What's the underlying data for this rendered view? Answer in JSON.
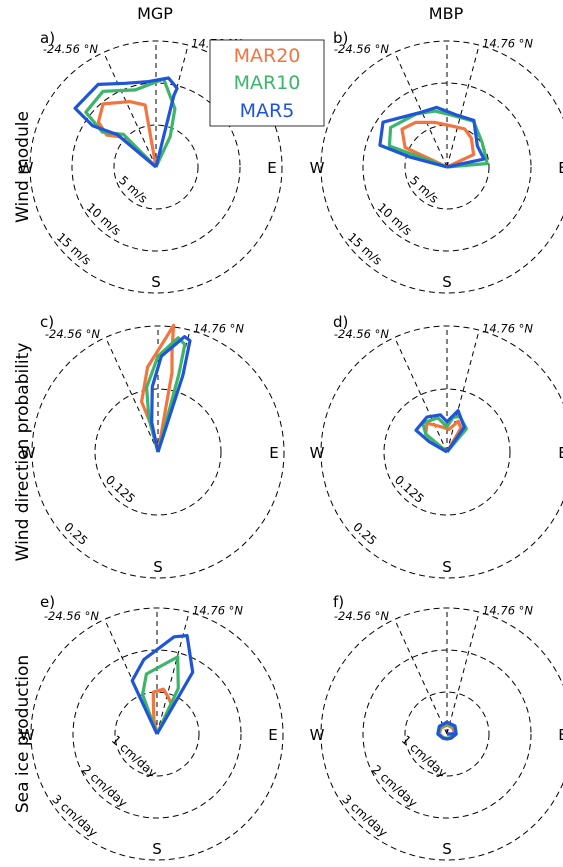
{
  "columns": [
    "MGP",
    "MBP"
  ],
  "row_labels": [
    "Wind module",
    "Wind direction probability",
    "Sea ice production"
  ],
  "directions": {
    "west": "W",
    "east": "E",
    "south": "S"
  },
  "latitude_labels": {
    "left": "-24.56 °N",
    "right": "14.76 °N"
  },
  "legend": [
    {
      "name": "MAR20",
      "color": "#f4743f"
    },
    {
      "name": "MAR10",
      "color": "#3cb46a"
    },
    {
      "name": "MAR5",
      "color": "#1f55d8"
    }
  ],
  "chart_data": [
    {
      "panel": "a)",
      "column": "MGP",
      "row": "Wind module",
      "type": "polar-line",
      "angle_unit": "degrees clockwise from north",
      "r_max": 15,
      "ring_values": [
        5,
        10,
        15
      ],
      "ring_labels": [
        "5 m/s",
        "10 m/s",
        "15 m/s"
      ],
      "show_ring_labels": true,
      "latitudes": [
        -24.56,
        14.76
      ],
      "series": [
        {
          "name": "MAR20",
          "points": [
            [
              0,
              0
            ],
            [
              -10,
              7.5
            ],
            [
              -22,
              8.4
            ],
            [
              -40,
              9.8
            ],
            [
              -52,
              8.7
            ],
            [
              -57,
              7.0
            ],
            [
              -50,
              5.6
            ],
            [
              0,
              0
            ]
          ]
        },
        {
          "name": "MAR10",
          "points": [
            [
              0,
              0
            ],
            [
              25,
              4.0
            ],
            [
              18,
              7.3
            ],
            [
              5,
              10.5
            ],
            [
              -15,
              9.5
            ],
            [
              -35,
              11.0
            ],
            [
              -52,
              10.6
            ],
            [
              -57,
              7.6
            ],
            [
              -45,
              5.5
            ],
            [
              0,
              0
            ]
          ]
        },
        {
          "name": "MAR5",
          "points": [
            [
              0,
              0
            ],
            [
              14,
              8.8
            ],
            [
              15,
              9.7
            ],
            [
              8,
              10.7
            ],
            [
              -5,
              10.2
            ],
            [
              -20,
              10.6
            ],
            [
              -35,
              12.0
            ],
            [
              -54,
              11.9
            ],
            [
              -57,
              9.0
            ],
            [
              -50,
              6.0
            ],
            [
              0,
              0
            ]
          ]
        }
      ]
    },
    {
      "panel": "b)",
      "column": "MBP",
      "row": "Wind module",
      "type": "polar-line",
      "angle_unit": "degrees clockwise from north",
      "r_max": 15,
      "ring_values": [
        5,
        10,
        15
      ],
      "ring_labels": [
        "5 m/s",
        "10 m/s",
        "15 m/s"
      ],
      "show_ring_labels": true,
      "latitudes": [
        -24.56,
        14.76
      ],
      "series": [
        {
          "name": "MAR20",
          "points": [
            [
              0,
              0
            ],
            [
              65,
              3.5
            ],
            [
              40,
              4.5
            ],
            [
              25,
              5.0
            ],
            [
              0,
              5.0
            ],
            [
              -15,
              5.5
            ],
            [
              -35,
              6.5
            ],
            [
              -50,
              7.0
            ],
            [
              -65,
              5.5
            ],
            [
              0,
              0
            ]
          ]
        },
        {
          "name": "MAR10",
          "points": [
            [
              0,
              0
            ],
            [
              85,
              4.8
            ],
            [
              55,
              5.1
            ],
            [
              30,
              6.3
            ],
            [
              5,
              6.2
            ],
            [
              -12,
              6.8
            ],
            [
              -30,
              7.3
            ],
            [
              -55,
              8.2
            ],
            [
              -70,
              7.3
            ],
            [
              0,
              0
            ]
          ]
        },
        {
          "name": "MAR5",
          "points": [
            [
              0,
              0
            ],
            [
              78,
              4.5
            ],
            [
              55,
              4.4
            ],
            [
              30,
              6.4
            ],
            [
              10,
              6.3
            ],
            [
              -10,
              7.2
            ],
            [
              -25,
              7.2
            ],
            [
              -55,
              9.3
            ],
            [
              -72,
              8.4
            ],
            [
              -75,
              4.5
            ],
            [
              0,
              0
            ]
          ]
        }
      ]
    },
    {
      "panel": "c)",
      "column": "MGP",
      "row": "Wind direction probability",
      "type": "polar-line",
      "angle_unit": "degrees clockwise from north",
      "r_max": 0.25,
      "ring_values": [
        0.125,
        0.25
      ],
      "ring_labels": [
        "0.125",
        "0.25"
      ],
      "show_ring_labels": true,
      "latitudes": [
        -24.56,
        14.76
      ],
      "series": [
        {
          "name": "MAR20",
          "points": [
            [
              0,
              0
            ],
            [
              10,
              0.16
            ],
            [
              8,
              0.2
            ],
            [
              7,
              0.253
            ],
            [
              3,
              0.22
            ],
            [
              -7,
              0.17
            ],
            [
              -18,
              0.105
            ],
            [
              -15,
              0.06
            ],
            [
              0,
              0
            ]
          ]
        },
        {
          "name": "MAR10",
          "points": [
            [
              0,
              0
            ],
            [
              15,
              0.16
            ],
            [
              14,
              0.22
            ],
            [
              10,
              0.23
            ],
            [
              0,
              0.19
            ],
            [
              -10,
              0.13
            ],
            [
              -15,
              0.07
            ],
            [
              0,
              0
            ]
          ]
        },
        {
          "name": "MAR5",
          "points": [
            [
              0,
              0
            ],
            [
              18,
              0.16
            ],
            [
              16,
              0.23
            ],
            [
              13,
              0.235
            ],
            [
              2,
              0.19
            ],
            [
              -5,
              0.13
            ],
            [
              -12,
              0.06
            ],
            [
              0,
              0
            ]
          ]
        }
      ]
    },
    {
      "panel": "d)",
      "column": "MBP",
      "row": "Wind direction probability",
      "type": "polar-line",
      "angle_unit": "degrees clockwise from north",
      "r_max": 0.25,
      "ring_values": [
        0.125,
        0.25
      ],
      "ring_labels": [
        "0.125",
        "0.25"
      ],
      "show_ring_labels": true,
      "latitudes": [
        -24.56,
        14.76
      ],
      "series": [
        {
          "name": "MAR20",
          "points": [
            [
              0,
              0
            ],
            [
              30,
              0.055
            ],
            [
              20,
              0.065
            ],
            [
              5,
              0.045
            ],
            [
              -10,
              0.05
            ],
            [
              -35,
              0.07
            ],
            [
              -50,
              0.055
            ],
            [
              0,
              0
            ]
          ]
        },
        {
          "name": "MAR10",
          "points": [
            [
              0,
              0
            ],
            [
              40,
              0.06
            ],
            [
              20,
              0.075
            ],
            [
              10,
              0.07
            ],
            [
              0,
              0.05
            ],
            [
              -15,
              0.07
            ],
            [
              -40,
              0.075
            ],
            [
              -50,
              0.055
            ],
            [
              0,
              0
            ]
          ]
        },
        {
          "name": "MAR5",
          "points": [
            [
              0,
              0
            ],
            [
              35,
              0.06
            ],
            [
              15,
              0.085
            ],
            [
              0,
              0.06
            ],
            [
              -10,
              0.075
            ],
            [
              -30,
              0.08
            ],
            [
              -55,
              0.075
            ],
            [
              -60,
              0.04
            ],
            [
              0,
              0
            ]
          ]
        }
      ]
    },
    {
      "panel": "e)",
      "column": "MGP",
      "row": "Sea ice production",
      "type": "polar-line",
      "angle_unit": "degrees clockwise from north",
      "r_max": 3,
      "ring_values": [
        1,
        2,
        3
      ],
      "ring_labels": [
        "1 cm/day",
        "2 cm/day",
        "3 cm/day"
      ],
      "show_ring_labels": true,
      "latitudes": [
        -24.56,
        14.76
      ],
      "series": [
        {
          "name": "MAR20",
          "points": [
            [
              0,
              0
            ],
            [
              25,
              0.8
            ],
            [
              15,
              0.95
            ],
            [
              8,
              1.08
            ],
            [
              -5,
              1.0
            ],
            [
              -8,
              0.6
            ],
            [
              -12,
              0.35
            ],
            [
              0,
              0
            ]
          ]
        },
        {
          "name": "MAR10",
          "points": [
            [
              0,
              0
            ],
            [
              25,
              1.2
            ],
            [
              15,
              1.9
            ],
            [
              -10,
              1.45
            ],
            [
              -20,
              1.0
            ],
            [
              0,
              0
            ]
          ]
        },
        {
          "name": "MAR5",
          "points": [
            [
              0,
              0
            ],
            [
              30,
              1.7
            ],
            [
              17,
              2.45
            ],
            [
              10,
              2.35
            ],
            [
              -10,
              1.8
            ],
            [
              -25,
              1.4
            ],
            [
              -25,
              0.8
            ],
            [
              0,
              0
            ]
          ]
        }
      ]
    },
    {
      "panel": "f)",
      "column": "MBP",
      "row": "Sea ice production",
      "type": "polar-line",
      "angle_unit": "degrees clockwise from north",
      "r_max": 3,
      "ring_values": [
        1,
        2,
        3
      ],
      "ring_labels": [
        "1 cm/day",
        "2 cm/day",
        "3 cm/day"
      ],
      "show_ring_labels": true,
      "latitudes": [
        -24.56,
        14.76
      ],
      "series": [
        {
          "name": "MAR20",
          "points": [
            [
              0,
              0
            ],
            [
              90,
              0.18
            ],
            [
              45,
              0.2
            ],
            [
              0,
              0.22
            ],
            [
              -45,
              0.2
            ],
            [
              -90,
              0.18
            ],
            [
              -135,
              0.12
            ],
            [
              180,
              0.1
            ],
            [
              135,
              0.12
            ],
            [
              90,
              0.18
            ]
          ]
        },
        {
          "name": "MAR10",
          "points": [
            [
              0,
              0
            ],
            [
              90,
              0.2
            ],
            [
              45,
              0.24
            ],
            [
              0,
              0.25
            ],
            [
              -45,
              0.24
            ],
            [
              -90,
              0.2
            ],
            [
              -135,
              0.13
            ],
            [
              180,
              0.1
            ],
            [
              135,
              0.13
            ],
            [
              90,
              0.2
            ]
          ]
        },
        {
          "name": "MAR5",
          "points": [
            [
              0,
              0
            ],
            [
              90,
              0.22
            ],
            [
              45,
              0.27
            ],
            [
              0,
              0.28
            ],
            [
              -45,
              0.26
            ],
            [
              -90,
              0.22
            ],
            [
              -135,
              0.14
            ],
            [
              180,
              0.12
            ],
            [
              135,
              0.14
            ],
            [
              90,
              0.22
            ]
          ]
        }
      ]
    }
  ]
}
